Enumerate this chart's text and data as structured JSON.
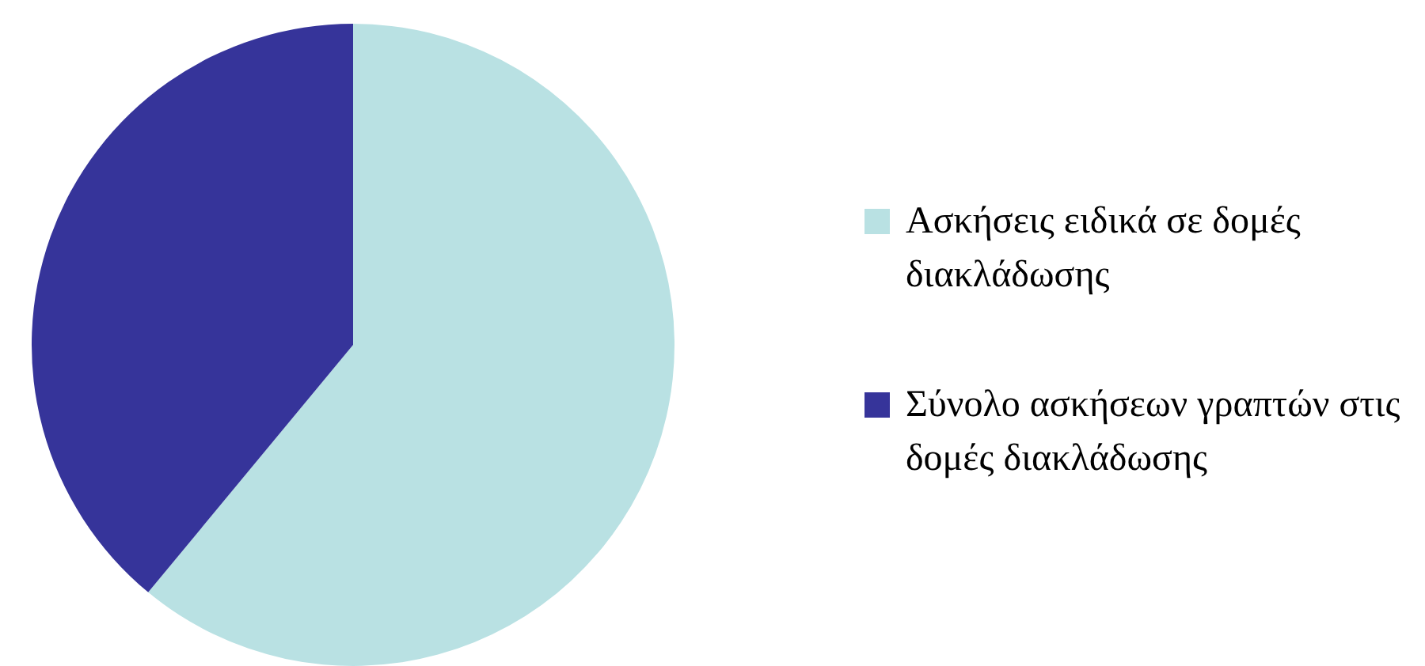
{
  "chart_data": {
    "type": "pie",
    "categories": [
      "Ασκήσεις ειδικά σε δομές διακλάδωσης",
      "Σύνολο ασκήσεων γραπτών στις δομές διακλάδωσης"
    ],
    "values": [
      61,
      39
    ],
    "colors": [
      "#b9e1e3",
      "#36349a"
    ],
    "legend": "right"
  }
}
